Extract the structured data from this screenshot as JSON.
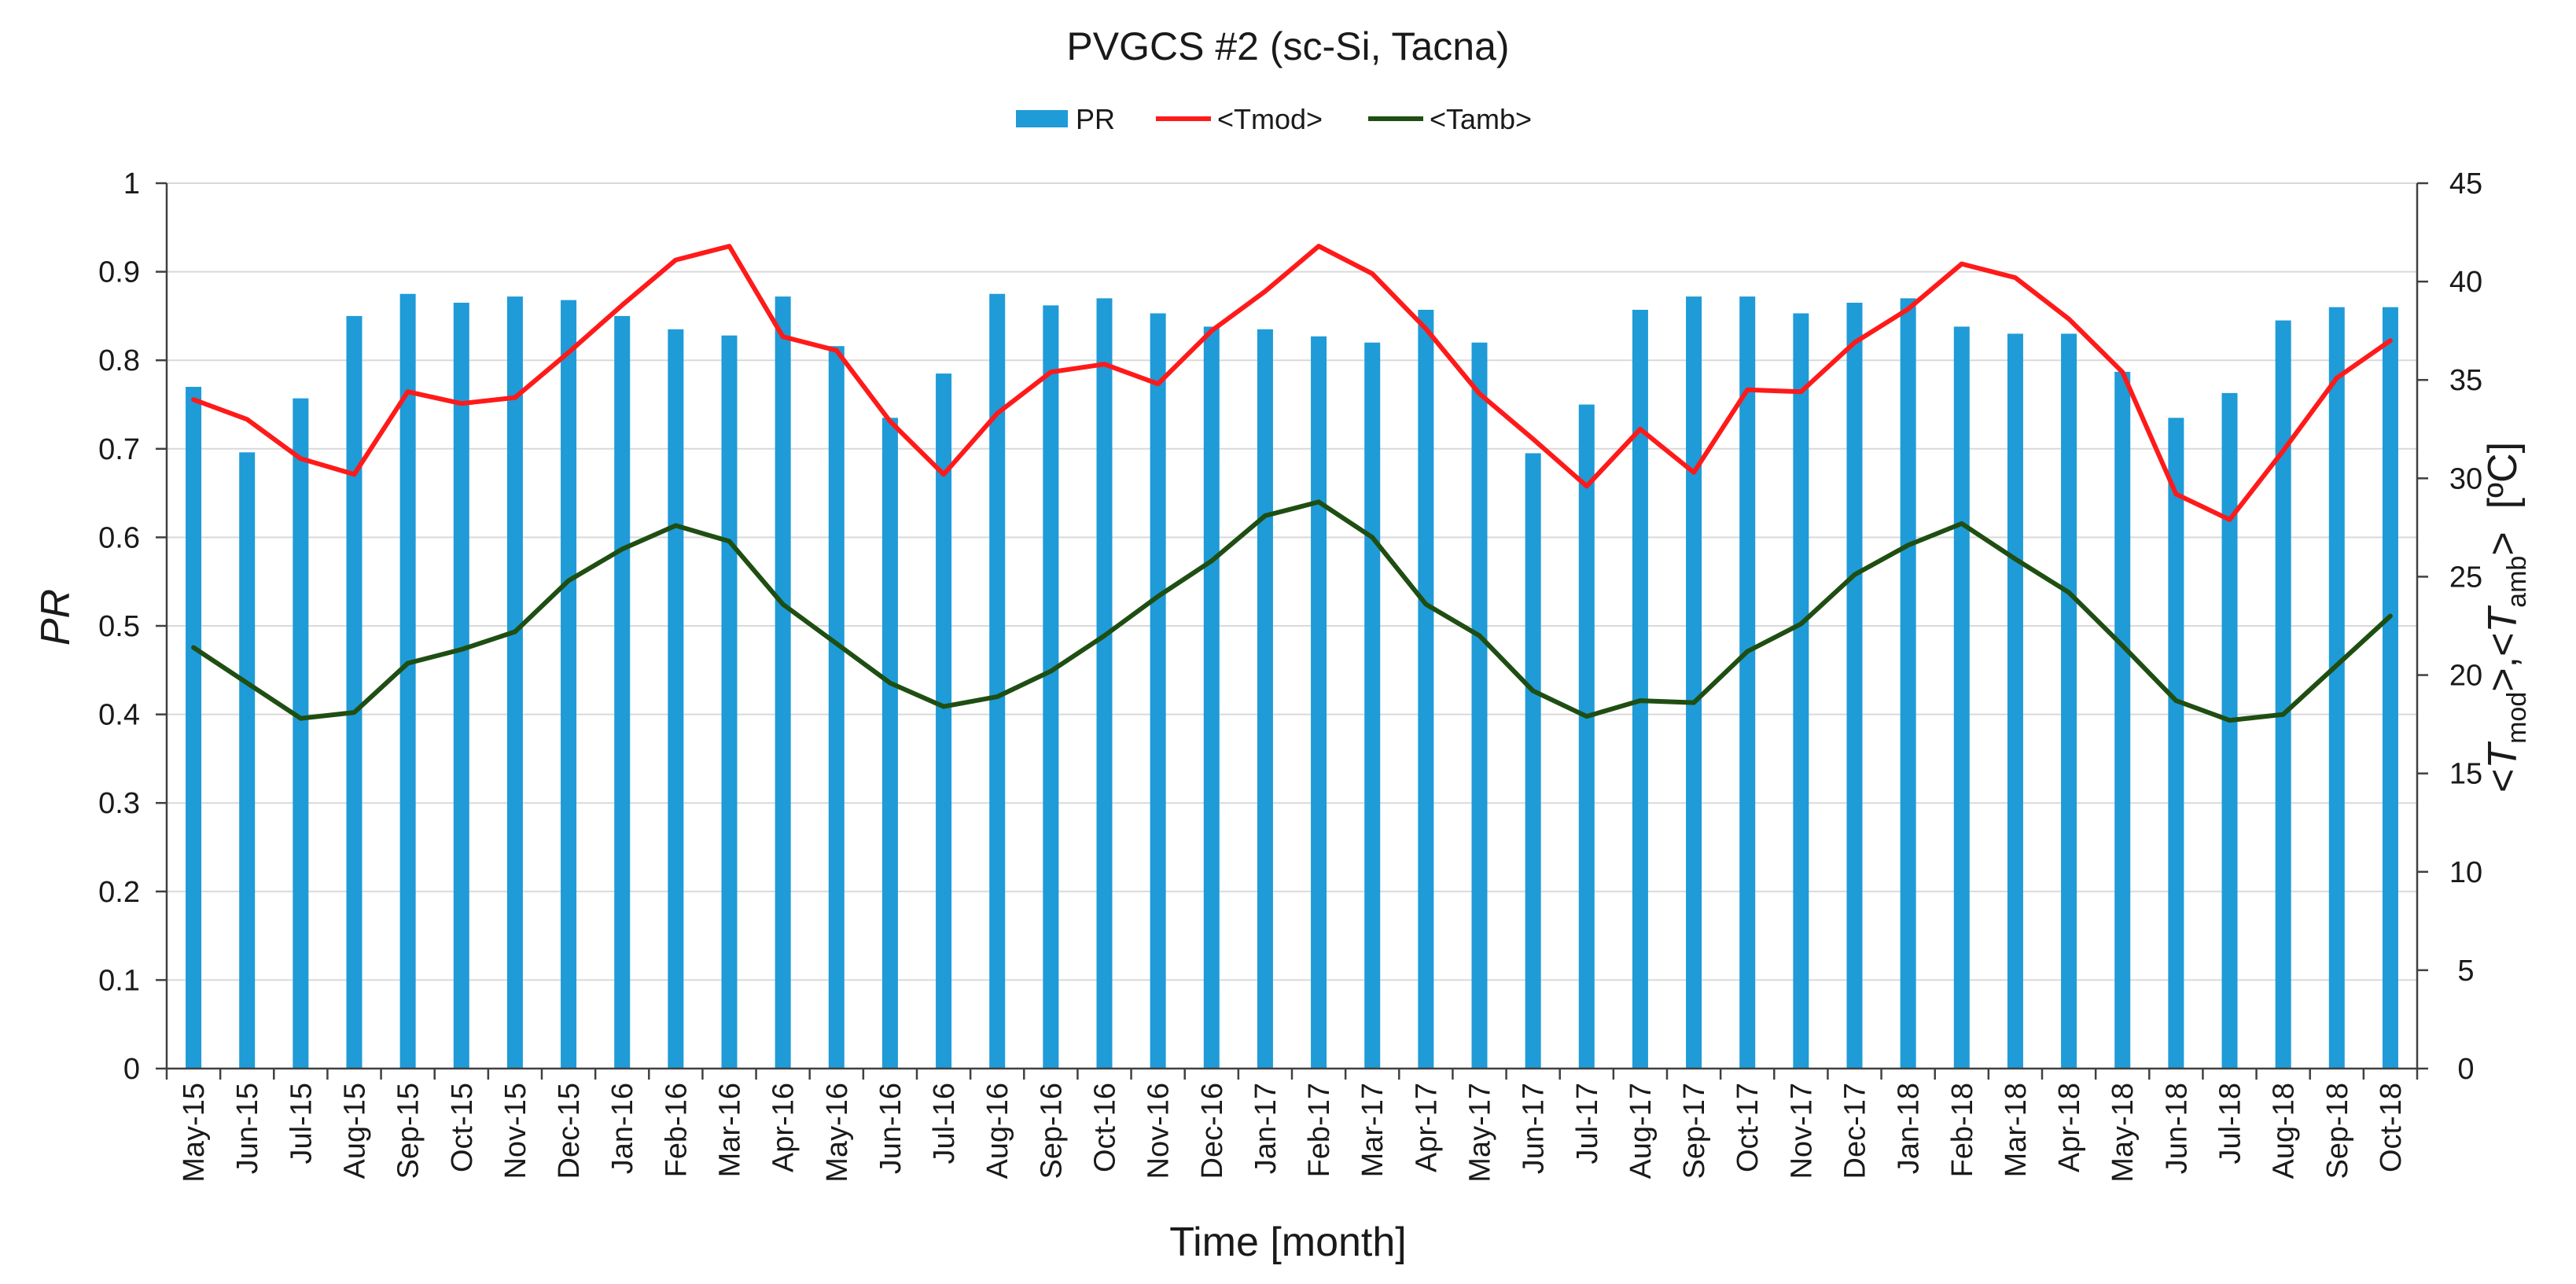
{
  "chart_data": {
    "type": "bar+line",
    "title": "PVGCS #2 (sc-Si, Tacna)",
    "xlabel": "Time [month]",
    "ylabel": "PR",
    "y2label": {
      "prefix": "<",
      "t1": "T",
      "t1_sub": "mod",
      "middle": ">,<",
      "t2": "T",
      "t2_sub": "amb",
      "suffix": ">  [ºC]"
    },
    "ylim": [
      0,
      1
    ],
    "y_ticks": [
      "0",
      "0.1",
      "0.2",
      "0.3",
      "0.4",
      "0.5",
      "0.6",
      "0.7",
      "0.8",
      "0.9",
      "1"
    ],
    "y2lim": [
      0,
      45
    ],
    "y2_ticks": [
      "0",
      "5",
      "10",
      "15",
      "20",
      "25",
      "30",
      "35",
      "40",
      "45"
    ],
    "grid": true,
    "legend_position": "top-center",
    "categories": [
      "May-15",
      "Jun-15",
      "Jul-15",
      "Aug-15",
      "Sep-15",
      "Oct-15",
      "Nov-15",
      "Dec-15",
      "Jan-16",
      "Feb-16",
      "Mar-16",
      "Apr-16",
      "May-16",
      "Jun-16",
      "Jul-16",
      "Aug-16",
      "Sep-16",
      "Oct-16",
      "Nov-16",
      "Dec-16",
      "Jan-17",
      "Feb-17",
      "Mar-17",
      "Apr-17",
      "May-17",
      "Jun-17",
      "Jul-17",
      "Aug-17",
      "Sep-17",
      "Oct-17",
      "Nov-17",
      "Dec-17",
      "Jan-18",
      "Feb-18",
      "Mar-18",
      "Apr-18",
      "May-18",
      "Jun-18",
      "Jul-18",
      "Aug-18",
      "Sep-18",
      "Oct-18"
    ],
    "series": [
      {
        "name": "PR",
        "type": "bar",
        "axis": "left",
        "color": "#1f9bd7",
        "values": [
          0.77,
          0.696,
          0.757,
          0.85,
          0.875,
          0.865,
          0.872,
          0.868,
          0.85,
          0.835,
          0.828,
          0.872,
          0.816,
          0.735,
          0.785,
          0.875,
          0.862,
          0.87,
          0.853,
          0.838,
          0.835,
          0.827,
          0.82,
          0.857,
          0.82,
          0.695,
          0.75,
          0.857,
          0.872,
          0.872,
          0.853,
          0.865,
          0.87,
          0.838,
          0.83,
          0.83,
          0.787,
          0.735,
          0.763,
          0.845,
          0.86,
          0.86
        ]
      },
      {
        "name": "<Tmod>",
        "type": "line",
        "axis": "right",
        "color": "#ff1a1a",
        "values": [
          34,
          33,
          31,
          30.2,
          34.4,
          33.8,
          34.1,
          36.4,
          38.8,
          41.1,
          41.8,
          37.2,
          36.5,
          32.9,
          30.2,
          33.3,
          35.4,
          35.8,
          34.8,
          37.5,
          39.5,
          41.8,
          40.4,
          37.6,
          34.3,
          32,
          29.6,
          32.5,
          30.3,
          34.5,
          34.4,
          36.9,
          38.6,
          40.9,
          40.2,
          38.1,
          35.4,
          29.2,
          27.9,
          31.4,
          35.1,
          37
        ]
      },
      {
        "name": "<Tamb>",
        "type": "line",
        "axis": "right",
        "color": "#1f4e12",
        "values": [
          21.4,
          19.6,
          17.8,
          18.1,
          20.6,
          21.3,
          22.2,
          24.8,
          26.4,
          27.6,
          26.8,
          23.6,
          21.6,
          19.6,
          18.4,
          18.9,
          20.2,
          22,
          24,
          25.8,
          28.1,
          28.8,
          27,
          23.6,
          22,
          19.2,
          17.9,
          18.7,
          18.6,
          21.2,
          22.6,
          25.1,
          26.6,
          27.7,
          25.9,
          24.2,
          21.5,
          18.7,
          17.7,
          18,
          20.5,
          23
        ]
      }
    ]
  }
}
